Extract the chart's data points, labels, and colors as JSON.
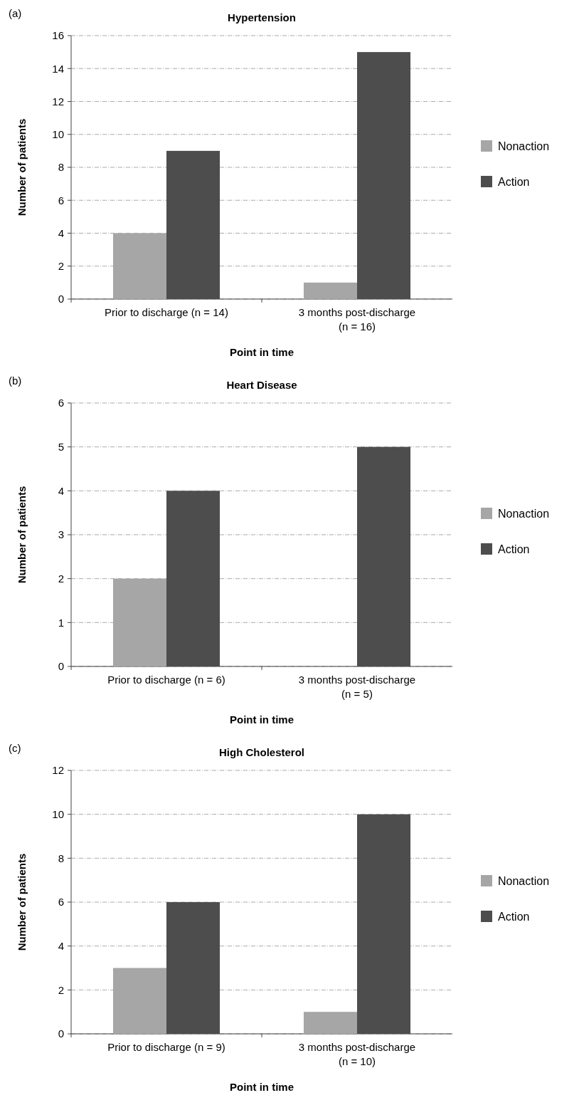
{
  "chart_data": [
    {
      "type": "bar",
      "title": "Hypertension",
      "annotations": [
        "(a)"
      ],
      "xlabel": "Point in time",
      "ylabel": "Number of patients",
      "categories": [
        "Prior to discharge (n = 14)",
        "3 months post-discharge (n = 16)"
      ],
      "series": [
        {
          "name": "Nonaction",
          "color": "#a6a6a6",
          "values": [
            4,
            1
          ]
        },
        {
          "name": "Action",
          "color": "#4d4d4d",
          "values": [
            9,
            15
          ]
        }
      ],
      "ylim": [
        0,
        16
      ],
      "yticks": [
        0,
        2,
        4,
        6,
        8,
        10,
        12,
        14,
        16
      ],
      "grid": "y",
      "legend": "right"
    },
    {
      "type": "bar",
      "title": "Heart Disease",
      "annotations": [
        "(b)"
      ],
      "xlabel": "Point in time",
      "ylabel": "Number of patients",
      "categories": [
        "Prior to discharge (n = 6)",
        "3 months post-discharge (n = 5)"
      ],
      "series": [
        {
          "name": "Nonaction",
          "color": "#a6a6a6",
          "values": [
            2,
            0
          ]
        },
        {
          "name": "Action",
          "color": "#4d4d4d",
          "values": [
            4,
            5
          ]
        }
      ],
      "ylim": [
        0,
        6
      ],
      "yticks": [
        0,
        1,
        2,
        3,
        4,
        5,
        6
      ],
      "grid": "y",
      "legend": "right"
    },
    {
      "type": "bar",
      "title": "High Cholesterol",
      "annotations": [
        "(c)"
      ],
      "xlabel": "Point in time",
      "ylabel": "Number of patients",
      "categories": [
        "Prior to discharge (n = 9)",
        "3 months post-discharge (n = 10)"
      ],
      "series": [
        {
          "name": "Nonaction",
          "color": "#a6a6a6",
          "values": [
            3,
            1
          ]
        },
        {
          "name": "Action",
          "color": "#4d4d4d",
          "values": [
            6,
            10
          ]
        }
      ],
      "ylim": [
        0,
        12
      ],
      "yticks": [
        0,
        2,
        4,
        6,
        8,
        10,
        12
      ],
      "grid": "y",
      "legend": "right"
    }
  ]
}
